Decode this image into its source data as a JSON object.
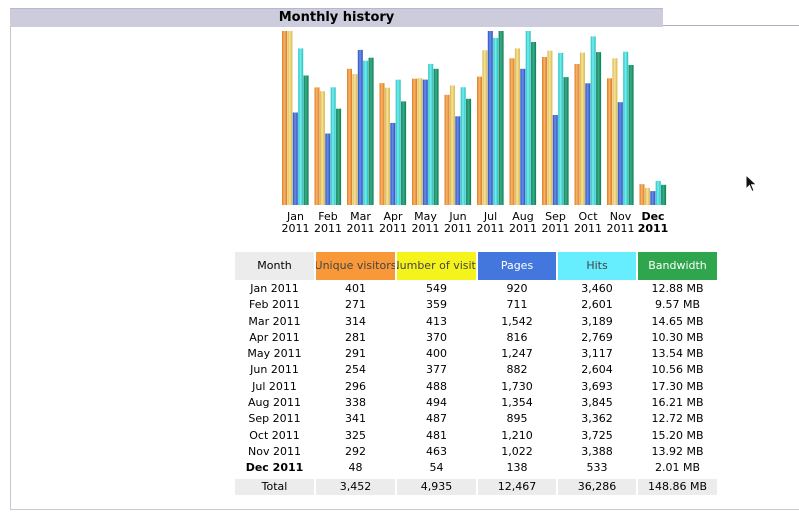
{
  "panel": {
    "title": "Monthly history"
  },
  "colors": {
    "unique_visitors": "#f4a040",
    "number_of_visits": "#f0d060",
    "pages": "#3366cc",
    "hits": "#44dddd",
    "bandwidth": "#1a9a6a",
    "header_bg": "#ccccdd"
  },
  "chart_data": {
    "type": "bar",
    "categories": [
      "Jan 2011",
      "Feb 2011",
      "Mar 2011",
      "Apr 2011",
      "May 2011",
      "Jun 2011",
      "Jul 2011",
      "Aug 2011",
      "Sep 2011",
      "Oct 2011",
      "Nov 2011",
      "Dec 2011"
    ],
    "x_tick_labels": [
      [
        "Jan",
        "2011"
      ],
      [
        "Feb",
        "2011"
      ],
      [
        "Mar",
        "2011"
      ],
      [
        "Apr",
        "2011"
      ],
      [
        "May",
        "2011"
      ],
      [
        "Jun",
        "2011"
      ],
      [
        "Jul",
        "2011"
      ],
      [
        "Aug",
        "2011"
      ],
      [
        "Sep",
        "2011"
      ],
      [
        "Oct",
        "2011"
      ],
      [
        "Nov",
        "2011"
      ],
      [
        "Dec",
        "2011"
      ]
    ],
    "highlight_category": 11,
    "series": [
      {
        "name": "Unique visitors",
        "values": [
          401,
          271,
          314,
          281,
          291,
          254,
          296,
          338,
          341,
          325,
          292,
          48
        ]
      },
      {
        "name": "Number of visits",
        "values": [
          549,
          359,
          413,
          370,
          400,
          377,
          488,
          494,
          487,
          481,
          463,
          54
        ]
      },
      {
        "name": "Pages",
        "values": [
          920,
          711,
          1542,
          816,
          1247,
          882,
          1730,
          1354,
          895,
          1210,
          1022,
          138
        ]
      },
      {
        "name": "Hits",
        "values": [
          3460,
          2601,
          3189,
          2769,
          3117,
          2604,
          3693,
          3845,
          3362,
          3725,
          3388,
          533
        ]
      },
      {
        "name": "Bandwidth",
        "values": [
          12.88,
          9.57,
          14.65,
          10.3,
          13.54,
          10.56,
          17.3,
          16.21,
          12.72,
          15.2,
          13.92,
          2.01
        ]
      }
    ],
    "units": {
      "Bandwidth": "MB"
    }
  },
  "table": {
    "headers": [
      "Month",
      "Unique visitors",
      "Number of visits",
      "Pages",
      "Hits",
      "Bandwidth"
    ],
    "rows": [
      [
        "Jan 2011",
        "401",
        "549",
        "920",
        "3,460",
        "12.88 MB"
      ],
      [
        "Feb 2011",
        "271",
        "359",
        "711",
        "2,601",
        "9.57 MB"
      ],
      [
        "Mar 2011",
        "314",
        "413",
        "1,542",
        "3,189",
        "14.65 MB"
      ],
      [
        "Apr 2011",
        "281",
        "370",
        "816",
        "2,769",
        "10.30 MB"
      ],
      [
        "May 2011",
        "291",
        "400",
        "1,247",
        "3,117",
        "13.54 MB"
      ],
      [
        "Jun 2011",
        "254",
        "377",
        "882",
        "2,604",
        "10.56 MB"
      ],
      [
        "Jul 2011",
        "296",
        "488",
        "1,730",
        "3,693",
        "17.30 MB"
      ],
      [
        "Aug 2011",
        "338",
        "494",
        "1,354",
        "3,845",
        "16.21 MB"
      ],
      [
        "Sep 2011",
        "341",
        "487",
        "895",
        "3,362",
        "12.72 MB"
      ],
      [
        "Oct 2011",
        "325",
        "481",
        "1,210",
        "3,725",
        "15.20 MB"
      ],
      [
        "Nov 2011",
        "292",
        "463",
        "1,022",
        "3,388",
        "13.92 MB"
      ],
      [
        "Dec 2011",
        "48",
        "54",
        "138",
        "533",
        "2.01 MB"
      ]
    ],
    "total": [
      "Total",
      "3,452",
      "4,935",
      "12,467",
      "36,286",
      "148.86 MB"
    ]
  },
  "cursor": {
    "icon": "mouse-pointer-icon"
  }
}
